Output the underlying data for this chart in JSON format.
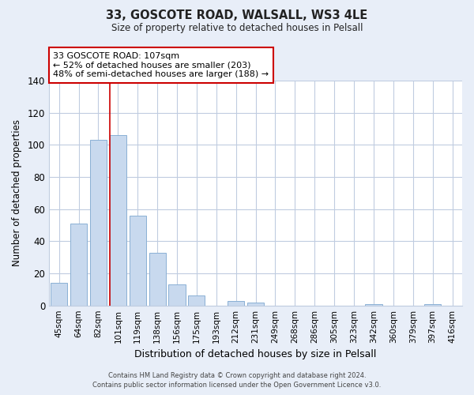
{
  "title": "33, GOSCOTE ROAD, WALSALL, WS3 4LE",
  "subtitle": "Size of property relative to detached houses in Pelsall",
  "xlabel": "Distribution of detached houses by size in Pelsall",
  "ylabel": "Number of detached properties",
  "categories": [
    "45sqm",
    "64sqm",
    "82sqm",
    "101sqm",
    "119sqm",
    "138sqm",
    "156sqm",
    "175sqm",
    "193sqm",
    "212sqm",
    "231sqm",
    "249sqm",
    "268sqm",
    "286sqm",
    "305sqm",
    "323sqm",
    "342sqm",
    "360sqm",
    "379sqm",
    "397sqm",
    "416sqm"
  ],
  "values": [
    14,
    51,
    103,
    106,
    56,
    33,
    13,
    6,
    0,
    3,
    2,
    0,
    0,
    0,
    0,
    0,
    1,
    0,
    0,
    1,
    0
  ],
  "bar_color": "#c8d9ee",
  "bar_edge_color": "#8ab0d4",
  "reference_line_color": "#cc0000",
  "annotation_box_text": "33 GOSCOTE ROAD: 107sqm\n← 52% of detached houses are smaller (203)\n48% of semi-detached houses are larger (188) →",
  "ylim": [
    0,
    140
  ],
  "yticks": [
    0,
    20,
    40,
    60,
    80,
    100,
    120,
    140
  ],
  "footer_line1": "Contains HM Land Registry data © Crown copyright and database right 2024.",
  "footer_line2": "Contains public sector information licensed under the Open Government Licence v3.0.",
  "bg_color": "#e8eef8",
  "plot_bg_color": "#e8eef8",
  "grid_color": "#c0cce0",
  "inner_plot_bg": "#ffffff"
}
